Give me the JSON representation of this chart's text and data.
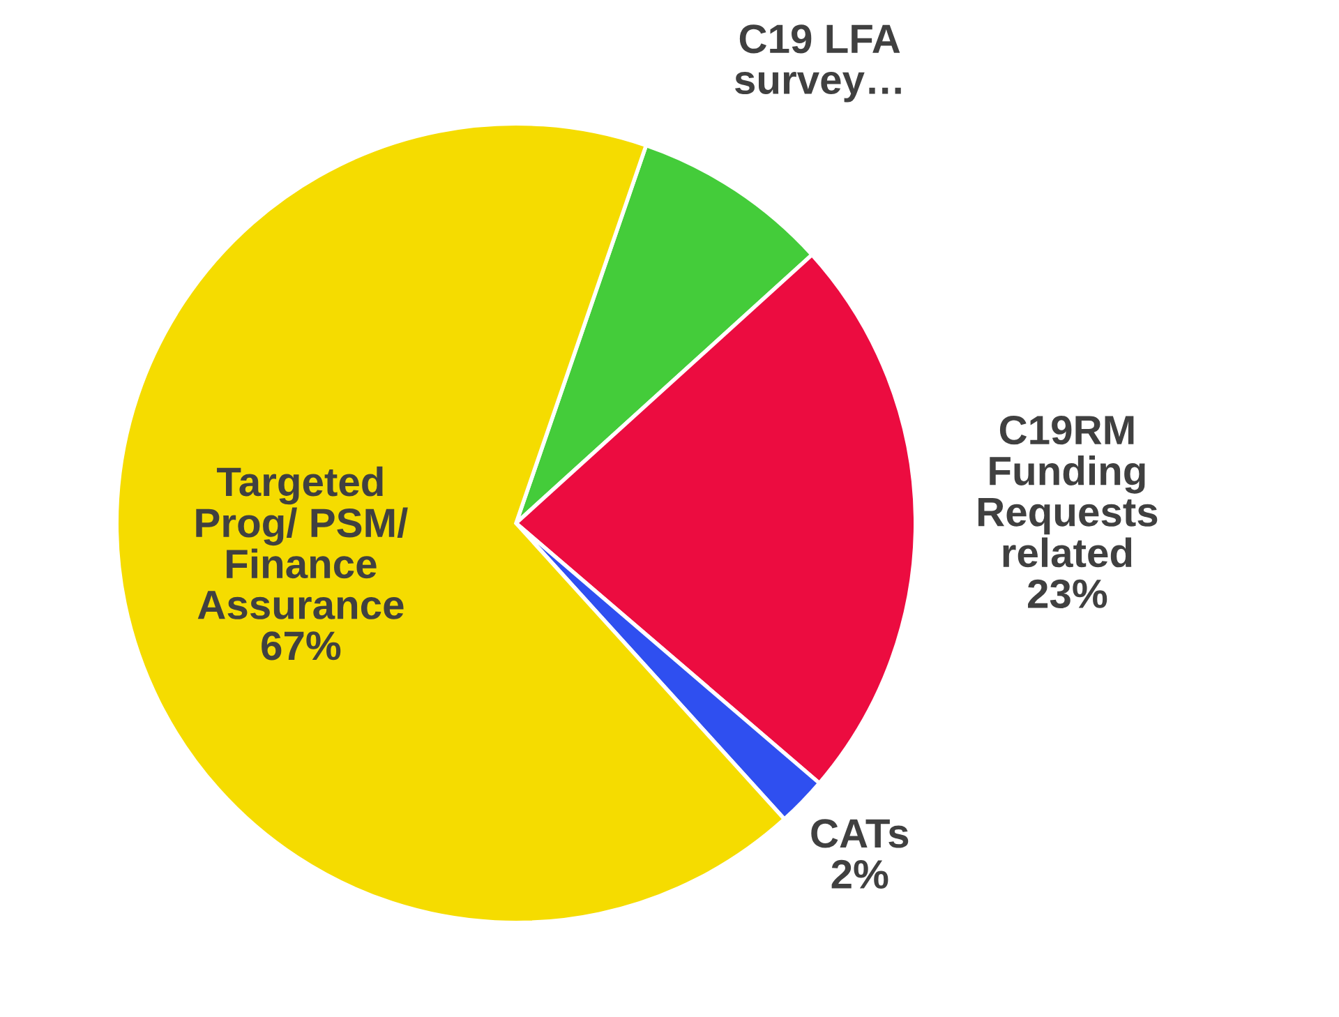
{
  "chart_data": {
    "type": "pie",
    "categories": [
      "C19 LFA survey…",
      "C19RM Funding Requests related",
      "CATs",
      "Targeted Prog/ PSM/ Finance Assurance"
    ],
    "values": [
      8,
      23,
      2,
      67
    ],
    "colors": [
      "#44cc3a",
      "#ec0c40",
      "#2f4ff0",
      "#f5dc00"
    ],
    "value_labels": [
      null,
      "23%",
      "2%",
      "67%"
    ],
    "legend": false
  }
}
